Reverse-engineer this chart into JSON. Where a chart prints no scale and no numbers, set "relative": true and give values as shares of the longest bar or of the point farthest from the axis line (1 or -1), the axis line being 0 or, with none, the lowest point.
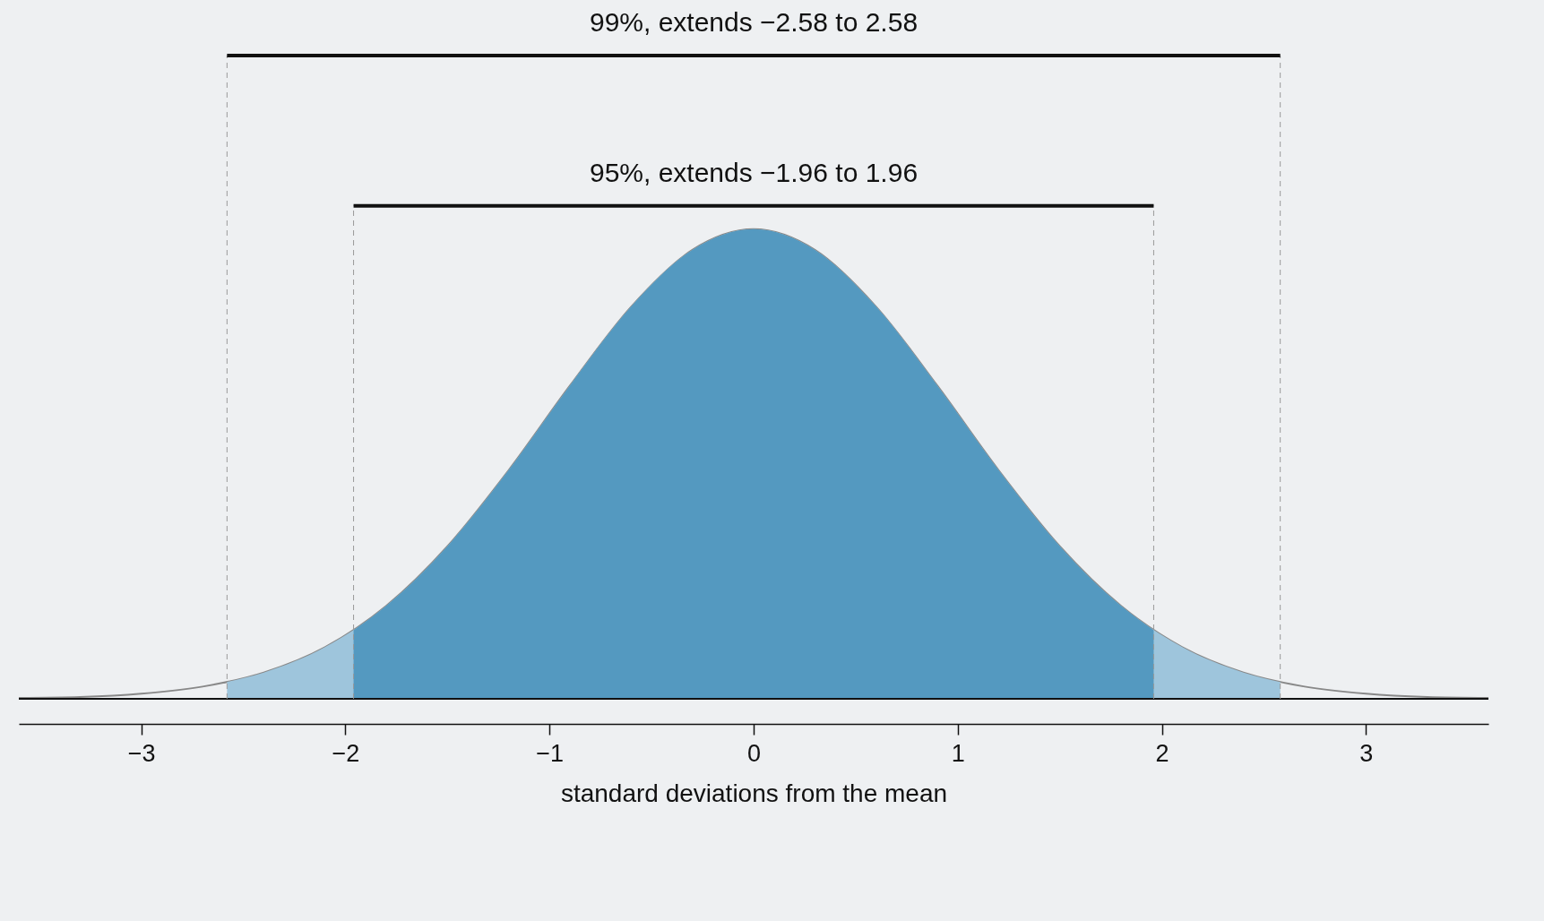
{
  "chart_data": {
    "type": "area",
    "relative": true,
    "xlabel": "standard deviations from the mean",
    "xlim": [
      -3.6,
      3.6
    ],
    "xticks": [
      {
        "value": -3,
        "label": "−3"
      },
      {
        "value": -2,
        "label": "−2"
      },
      {
        "value": -1,
        "label": "−1"
      },
      0,
      1,
      2,
      3
    ],
    "annotations": [
      "99%, extends −2.58 to 2.58",
      "95%, extends −1.96 to 1.96"
    ],
    "ref_lines": [
      {
        "axis": "x",
        "value": -2.58,
        "line_style": "dashed",
        "color": "#999999"
      },
      {
        "axis": "x",
        "value": 2.58,
        "line_style": "dashed",
        "color": "#999999"
      },
      {
        "axis": "x",
        "value": -1.96,
        "line_style": "dashed",
        "color": "#999999"
      },
      {
        "axis": "x",
        "value": 1.96,
        "line_style": "dashed",
        "color": "#999999"
      }
    ],
    "series": [
      {
        "type": "line",
        "color": "#888888",
        "x": [
          -3.6,
          -3.3,
          -3.0,
          -2.7,
          -2.4,
          -2.1,
          -1.8,
          -1.5,
          -1.2,
          -0.9,
          -0.6,
          -0.3,
          0,
          0.3,
          0.6,
          0.9,
          1.2,
          1.5,
          1.8,
          2.1,
          2.4,
          2.7,
          3.0,
          3.3,
          3.6
        ],
        "values": [
          0.002,
          0.004,
          0.011,
          0.026,
          0.056,
          0.11,
          0.198,
          0.325,
          0.487,
          0.667,
          0.835,
          0.956,
          1,
          0.956,
          0.835,
          0.667,
          0.487,
          0.325,
          0.198,
          0.11,
          0.056,
          0.026,
          0.011,
          0.004,
          0.002
        ]
      },
      {
        "type": "area",
        "color": "#9ec5dc",
        "x": [
          -2.58,
          -2.4,
          -2.1,
          -1.8,
          -1.5,
          -1.2,
          -0.9,
          -0.6,
          -0.3,
          0,
          0.3,
          0.6,
          0.9,
          1.2,
          1.5,
          1.8,
          2.1,
          2.4,
          2.58
        ],
        "values": [
          0.036,
          0.056,
          0.11,
          0.198,
          0.325,
          0.487,
          0.667,
          0.835,
          0.956,
          1,
          0.956,
          0.835,
          0.667,
          0.487,
          0.325,
          0.198,
          0.11,
          0.056,
          0.036
        ]
      },
      {
        "type": "area",
        "color": "#5499c0",
        "x": [
          -1.96,
          -1.8,
          -1.5,
          -1.2,
          -0.9,
          -0.6,
          -0.3,
          0,
          0.3,
          0.6,
          0.9,
          1.2,
          1.5,
          1.8,
          1.96
        ],
        "values": [
          0.146,
          0.198,
          0.325,
          0.487,
          0.667,
          0.835,
          0.956,
          1,
          0.956,
          0.835,
          0.667,
          0.487,
          0.325,
          0.198,
          0.146
        ]
      }
    ]
  }
}
